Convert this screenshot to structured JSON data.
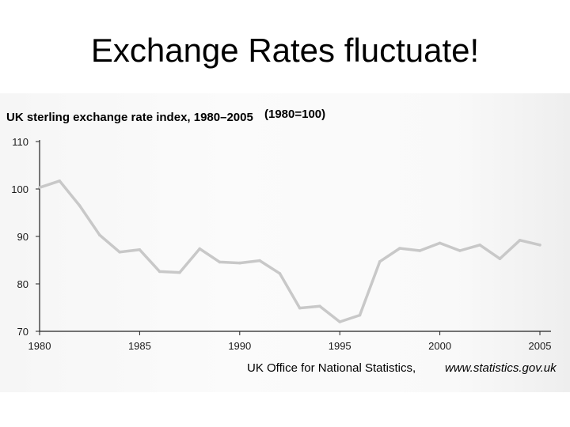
{
  "slide": {
    "title": "Exchange Rates fluctuate!"
  },
  "chart_data": {
    "type": "line",
    "title": "UK sterling exchange rate index, 1980–2005",
    "subtitle": "(1980=100)",
    "x": [
      1980,
      1981,
      1982,
      1983,
      1984,
      1985,
      1986,
      1987,
      1988,
      1989,
      1990,
      1991,
      1992,
      1993,
      1994,
      1995,
      1996,
      1997,
      1998,
      1999,
      2000,
      2001,
      2002,
      2003,
      2004,
      2005
    ],
    "series": [
      {
        "values": [
          100.3,
          101.7,
          96.5,
          90.3,
          86.7,
          87.2,
          82.6,
          82.4,
          87.4,
          84.6,
          84.4,
          84.9,
          82.2,
          74.9,
          75.3,
          72.0,
          73.4,
          84.7,
          87.5,
          87.0,
          88.6,
          87.0,
          88.2,
          85.3,
          89.2,
          88.2
        ]
      }
    ],
    "xlim": [
      1980,
      2005
    ],
    "ylim": [
      70,
      110
    ],
    "x_ticks": [
      "1980",
      "1985",
      "1990",
      "1995",
      "2000",
      "2005"
    ],
    "y_ticks": [
      "70",
      "80",
      "90",
      "100",
      "110"
    ],
    "grid": false,
    "source": "UK Office for National Statistics,",
    "source_url": "www.statistics.gov.uk",
    "colors": {
      "line": "#c8c8c8",
      "axis": "#222222",
      "text": "#1a1a1a"
    }
  }
}
